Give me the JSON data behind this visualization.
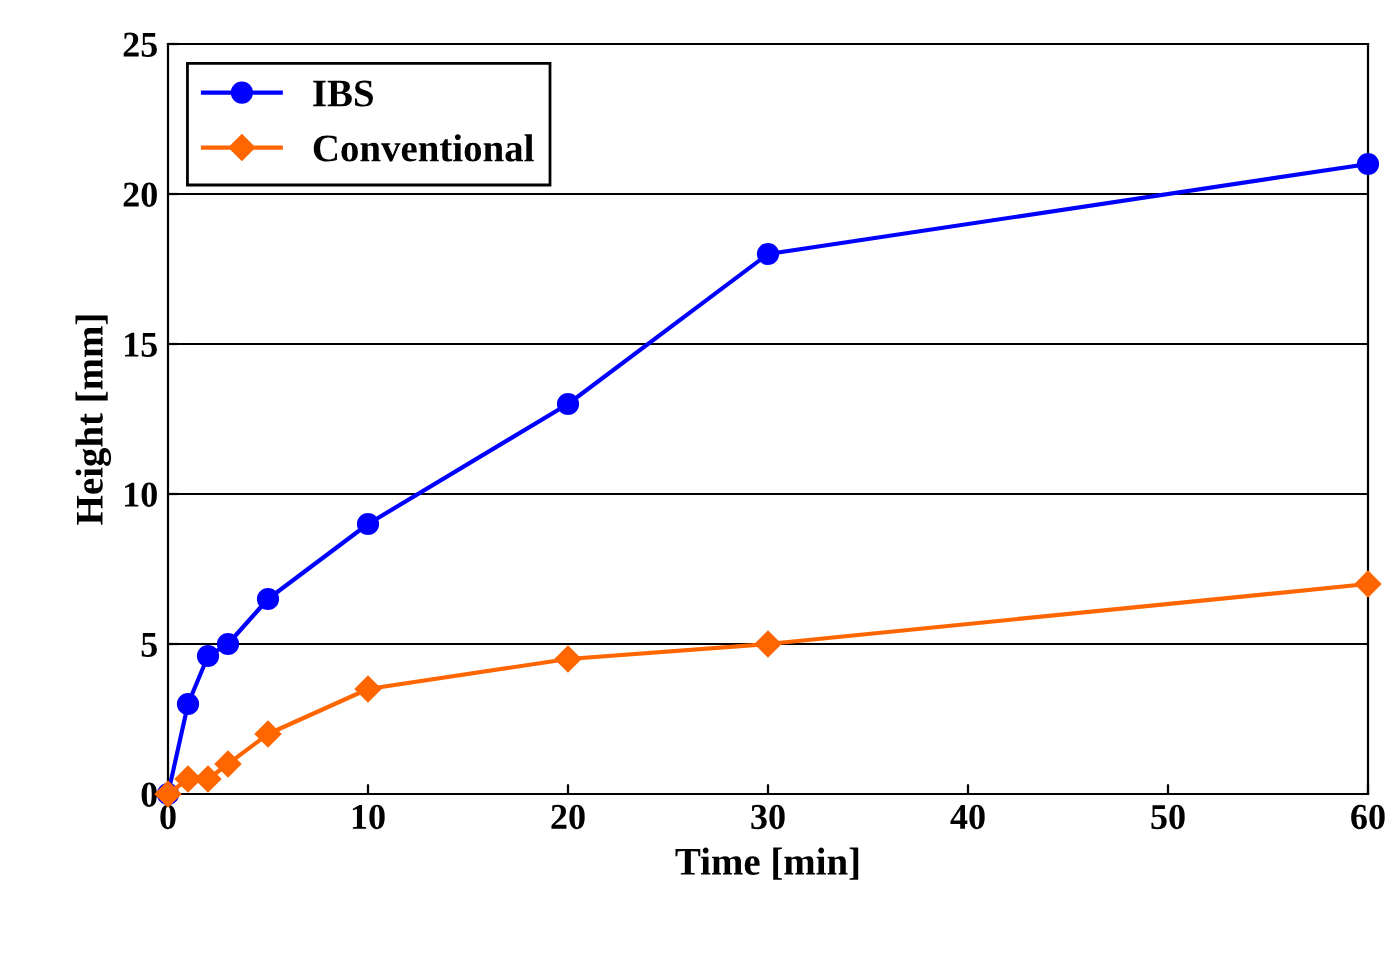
{
  "chart_data": {
    "type": "line",
    "xlabel": "Time [min]",
    "ylabel": "Height [mm]",
    "xlim": [
      0,
      60
    ],
    "xticks": [
      0,
      10,
      20,
      30,
      40,
      50,
      60
    ],
    "ylim": [
      0,
      25
    ],
    "yticks": [
      0,
      5,
      10,
      15,
      20,
      25
    ],
    "grid": "y",
    "legend": "top left",
    "series": [
      {
        "name": "IBS",
        "color": "#0000ff",
        "marker": "circle",
        "x": [
          0,
          1,
          2,
          3,
          5,
          10,
          20,
          30,
          60
        ],
        "values": [
          0,
          3,
          4.6,
          5,
          6.5,
          9,
          13,
          18,
          21
        ]
      },
      {
        "name": "Conventional",
        "color": "#ff6600",
        "marker": "diamond",
        "x": [
          0,
          1,
          2,
          3,
          5,
          10,
          20,
          30,
          60
        ],
        "values": [
          0,
          0.5,
          0.5,
          1,
          2,
          3.5,
          4.5,
          5,
          7
        ]
      }
    ]
  }
}
